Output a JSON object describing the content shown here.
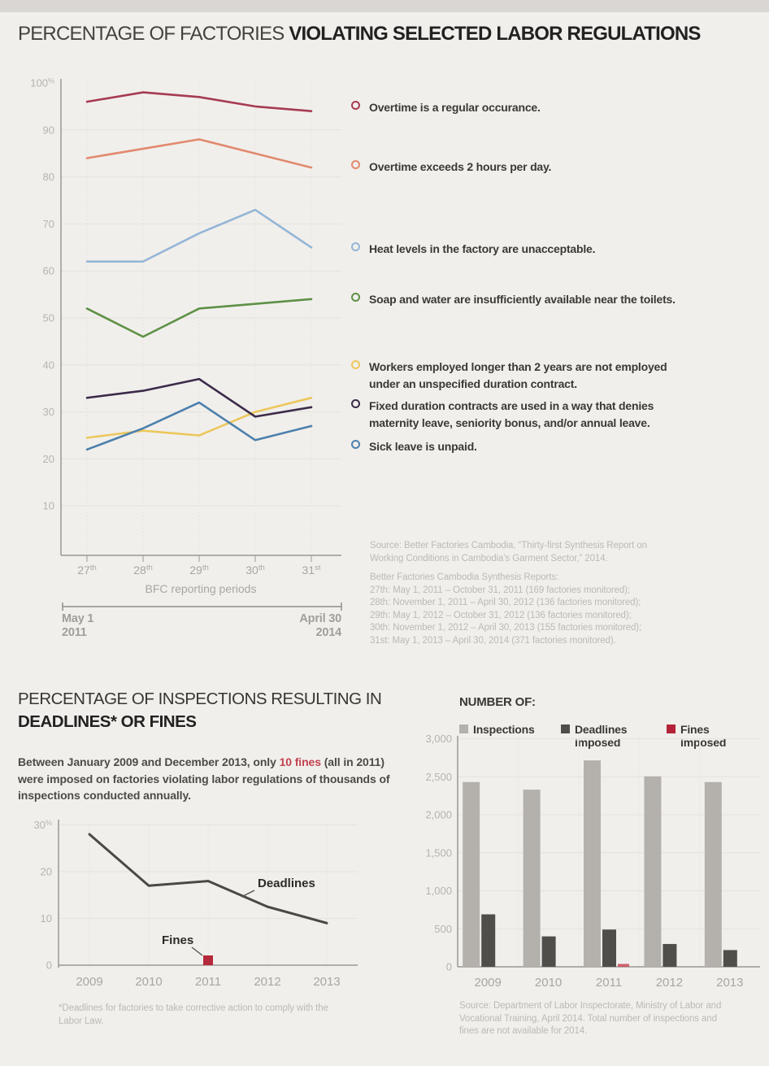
{
  "page": {
    "bg": "#f1efec",
    "top_strip": "#d9d6d3"
  },
  "header": {
    "title_regular": "PERCENTAGE OF FACTORIES ",
    "title_bold": "VIOLATING SELECTED LABOR REGULATIONS"
  },
  "top_chart": {
    "type": "line",
    "x_categories": [
      "27th",
      "28th",
      "29th",
      "30th",
      "31st"
    ],
    "xlabel": "BFC reporting periods",
    "ylabel_unit": "%",
    "ylim": [
      0,
      100
    ],
    "yticks": [
      100,
      90,
      80,
      70,
      60,
      50,
      40,
      30,
      20,
      10
    ],
    "grid": true,
    "legend_position": "right",
    "series": [
      {
        "name": "Overtime is a regular occurance.",
        "color": "#a63b52",
        "values": [
          96,
          98,
          97,
          95,
          94
        ]
      },
      {
        "name": "Overtime exceeds 2 hours per day.",
        "color": "#e18a6e",
        "values": [
          84,
          86,
          88,
          85,
          82
        ]
      },
      {
        "name": "Heat levels in the factory are unacceptable.",
        "color": "#94b6d6",
        "values": [
          62,
          62,
          68,
          73,
          65
        ]
      },
      {
        "name": "Soap and water are insufficiently available near the toilets.",
        "color": "#5e9146",
        "values": [
          52,
          46,
          52,
          53,
          54
        ]
      },
      {
        "name": "Workers employed longer than 2 years are not employed\nunder an unspecified duration contract.",
        "color": "#ecc75c",
        "values": [
          24.5,
          26,
          25,
          30,
          33
        ]
      },
      {
        "name": "Fixed duration contracts are used in a way that denies\nmaternity leave, seniority bonus, and/or annual leave.",
        "color": "#3c2b49",
        "values": [
          33,
          34.5,
          37,
          29,
          31
        ]
      },
      {
        "name": "Sick leave is unpaid.",
        "color": "#4c80ad",
        "values": [
          22,
          26.5,
          32,
          24,
          27
        ]
      }
    ],
    "timeline_start": "May 1\n2011",
    "timeline_end": "April 30\n2014"
  },
  "source_top": {
    "para": "Source: Better Factories Cambodia, “Thirty-first Synthesis Report on\nWorking Conditions in Cambodia’s Garment Sector,” 2014.",
    "reports": "Better Factories Cambodia Synthesis Reports:\n27th: May 1, 2011 – October 31, 2011 (169 factories monitored);\n28th: November 1, 2011 – April 30, 2012 (136 factories monitored);\n29th: May 1, 2012 – October 31, 2012 (136 factories monitored);\n30th: November 1, 2012 – April 30, 2013 (155 factories monitored);\n31st: May 1, 2013 – April 30, 2014 (371 factories monitored)."
  },
  "section2": {
    "title_line1": "PERCENTAGE OF INSPECTIONS RESULTING IN",
    "title_line2": "DEADLINES* OR FINES",
    "para_before": "Between January 2009 and December 2013, only ",
    "para_red": "10 fines",
    "para_after": " (all in 2011) were imposed on factories violating labor regulations of thousands of inspections conducted annually.",
    "red_color": "#c24250",
    "footnote": "*Deadlines for factories to take corrective action to comply with the\nLabor Law."
  },
  "deadlines_chart": {
    "type": "line",
    "x": [
      "2009",
      "2010",
      "2011",
      "2012",
      "2013"
    ],
    "ylim": [
      0,
      30
    ],
    "yticks": [
      30,
      20,
      10,
      0
    ],
    "grid": true,
    "series": [
      {
        "name": "Deadlines",
        "color": "#4b4846",
        "values": [
          28,
          17,
          18,
          12.5,
          9
        ]
      }
    ],
    "fines_point": {
      "x": "2011",
      "value": 1,
      "color": "#b5293c"
    },
    "annotation_deadlines": "Deadlines",
    "annotation_fines": "Fines"
  },
  "bars": {
    "title": "NUMBER OF:",
    "legend": [
      {
        "label": "Inspections",
        "color": "#b4b1ad"
      },
      {
        "label": "Deadlines\nimposed",
        "color": "#504e4b"
      },
      {
        "label": "Fines\nimposed",
        "color": "#b5233a"
      }
    ],
    "chart_data": {
      "type": "bar",
      "categories": [
        "2009",
        "2010",
        "2011",
        "2012",
        "2013"
      ],
      "ylim": [
        0,
        3000
      ],
      "yticks": [
        3000,
        2500,
        2000,
        1500,
        1000,
        500,
        0
      ],
      "grid": true,
      "series": [
        {
          "name": "Inspections",
          "color": "#b4b1ad",
          "values": [
            2430,
            2330,
            2715,
            2505,
            2430
          ]
        },
        {
          "name": "Deadlines imposed",
          "color": "#504e4b",
          "values": [
            690,
            400,
            490,
            300,
            220
          ]
        },
        {
          "name": "Fines imposed",
          "color": "#cc5f6b",
          "values": [
            0,
            0,
            10,
            0,
            0
          ]
        }
      ]
    },
    "source": "Source: Department of Labor Inspectorate, Ministry of Labor and\nVocational Training, April 2014. Total number of inspections and\nfines are not available for 2014."
  }
}
